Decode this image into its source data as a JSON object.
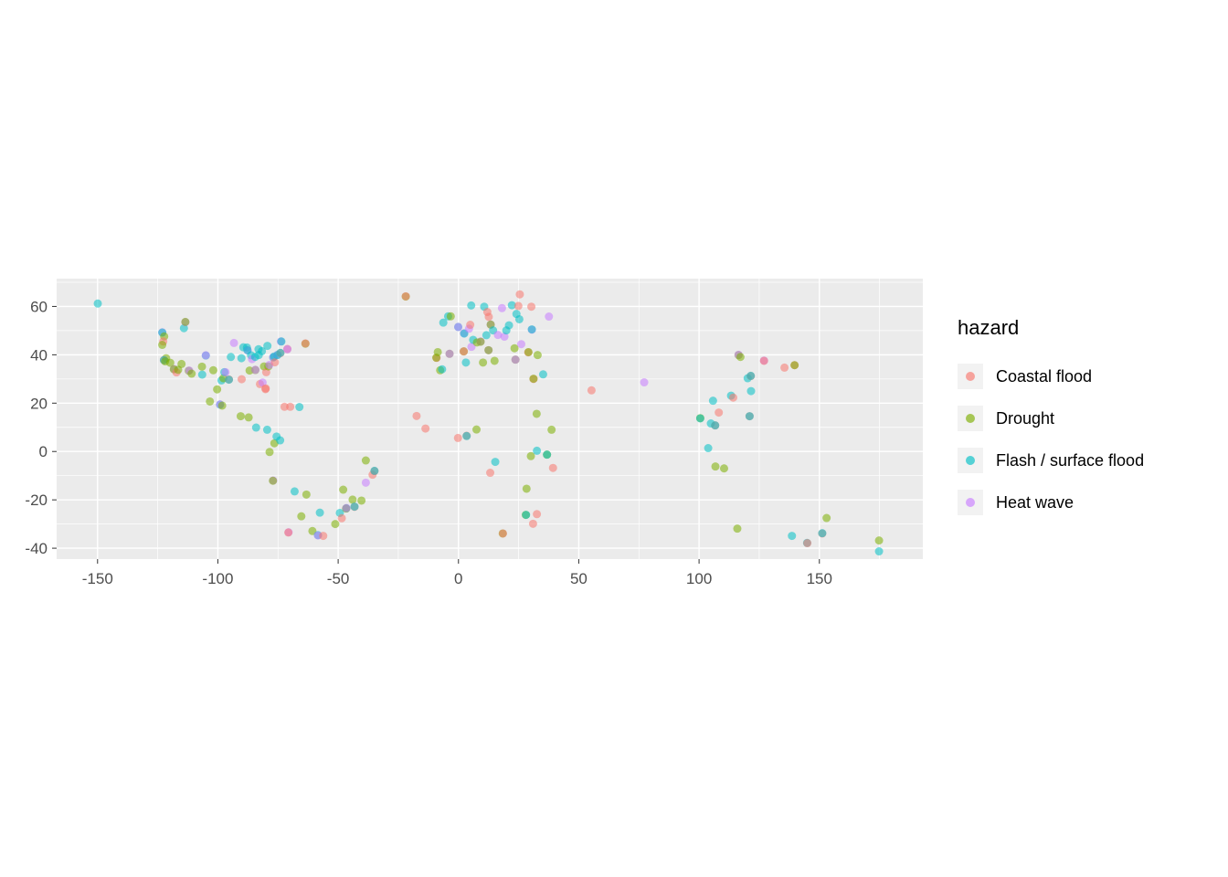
{
  "legend": {
    "title": "hazard"
  },
  "colors": {
    "panel_bg": "#EBEBEB",
    "grid": "#FFFFFF",
    "axis_text": "#4D4D4D",
    "tick_mark": "#333333",
    "legend_key_bg": "#F2F2F2"
  },
  "chart_data": {
    "type": "scatter",
    "title": "",
    "xlabel": "",
    "ylabel": "",
    "xlim": [
      -167,
      193
    ],
    "ylim": [
      -44.5,
      71.5
    ],
    "x_ticks": [
      -150,
      -100,
      -50,
      0,
      50,
      100,
      150
    ],
    "y_ticks": [
      -40,
      -20,
      0,
      20,
      40,
      60
    ],
    "grid": "major and minor white gridlines on gray panel",
    "legend_position": "right",
    "legend_title": "hazard",
    "point_alpha": 0.55,
    "point_radius": 4.5,
    "series": [
      {
        "code": "C",
        "name": "Coastal flood",
        "color": "#F8766D"
      },
      {
        "code": "D",
        "name": "Drought",
        "color": "#7CAE00"
      },
      {
        "code": "F",
        "name": "Flash / surface flood",
        "color": "#00BFC4"
      },
      {
        "code": "H",
        "name": "Heat wave",
        "color": "#C77CFF"
      }
    ],
    "points": [
      [
        -149.9,
        61.2,
        "F"
      ],
      [
        -123.1,
        49.3,
        "H"
      ],
      [
        -123.1,
        49.2,
        "F"
      ],
      [
        -122.3,
        47.6,
        "D"
      ],
      [
        -122.7,
        45.5,
        "C"
      ],
      [
        -123.1,
        44.1,
        "D"
      ],
      [
        -121.5,
        38.6,
        "D"
      ],
      [
        -122.4,
        37.8,
        "C"
      ],
      [
        -122.4,
        37.8,
        "F"
      ],
      [
        -121.9,
        37.3,
        "D"
      ],
      [
        -119.8,
        36.7,
        "D"
      ],
      [
        -118.2,
        34.1,
        "H"
      ],
      [
        -118.3,
        34.0,
        "D"
      ],
      [
        -117.2,
        32.7,
        "C"
      ],
      [
        -116.5,
        33.8,
        "D"
      ],
      [
        -115.1,
        36.2,
        "D"
      ],
      [
        -114.1,
        51.0,
        "F"
      ],
      [
        -113.5,
        53.5,
        "H"
      ],
      [
        -113.5,
        53.6,
        "D"
      ],
      [
        -112.1,
        33.4,
        "D"
      ],
      [
        -111.9,
        33.5,
        "H"
      ],
      [
        -110.9,
        32.2,
        "D"
      ],
      [
        -106.6,
        35.1,
        "D"
      ],
      [
        -106.5,
        31.8,
        "F"
      ],
      [
        -105.0,
        39.7,
        "F"
      ],
      [
        -105.0,
        39.8,
        "H"
      ],
      [
        -101.9,
        33.6,
        "D"
      ],
      [
        -98.5,
        29.4,
        "F"
      ],
      [
        -97.7,
        30.3,
        "D"
      ],
      [
        -97.3,
        32.8,
        "F"
      ],
      [
        -96.8,
        32.8,
        "H"
      ],
      [
        -95.4,
        29.8,
        "C"
      ],
      [
        -95.4,
        29.7,
        "F"
      ],
      [
        -94.6,
        39.1,
        "F"
      ],
      [
        -93.3,
        44.9,
        "H"
      ],
      [
        -90.2,
        38.6,
        "F"
      ],
      [
        -90.1,
        29.9,
        "C"
      ],
      [
        -89.4,
        43.1,
        "F"
      ],
      [
        -87.9,
        43.0,
        "F"
      ],
      [
        -87.6,
        41.8,
        "H"
      ],
      [
        -87.7,
        41.9,
        "F"
      ],
      [
        -86.8,
        33.5,
        "D"
      ],
      [
        -86.2,
        39.8,
        "F"
      ],
      [
        -85.8,
        38.2,
        "H"
      ],
      [
        -84.5,
        39.1,
        "F"
      ],
      [
        -84.4,
        33.7,
        "D"
      ],
      [
        -84.4,
        33.8,
        "H"
      ],
      [
        -83.0,
        39.9,
        "F"
      ],
      [
        -83.1,
        42.3,
        "F"
      ],
      [
        -82.5,
        27.9,
        "C"
      ],
      [
        -81.7,
        41.5,
        "F"
      ],
      [
        -81.4,
        28.5,
        "H"
      ],
      [
        -80.8,
        35.2,
        "D"
      ],
      [
        -80.2,
        25.8,
        "C"
      ],
      [
        -80.1,
        26.1,
        "C"
      ],
      [
        -79.9,
        32.8,
        "C"
      ],
      [
        -79.4,
        43.7,
        "F"
      ],
      [
        -79.0,
        35.2,
        "D"
      ],
      [
        -78.6,
        35.8,
        "H"
      ],
      [
        -77.0,
        38.9,
        "F"
      ],
      [
        -77.0,
        39.0,
        "H"
      ],
      [
        -76.6,
        39.3,
        "F"
      ],
      [
        -76.3,
        36.9,
        "C"
      ],
      [
        -75.2,
        40.0,
        "H"
      ],
      [
        -75.2,
        39.9,
        "F"
      ],
      [
        -74.0,
        40.7,
        "C"
      ],
      [
        -74.0,
        40.8,
        "F"
      ],
      [
        -73.8,
        45.5,
        "H"
      ],
      [
        -73.6,
        45.5,
        "F"
      ],
      [
        -71.1,
        42.4,
        "C"
      ],
      [
        -71.1,
        42.3,
        "H"
      ],
      [
        -63.6,
        44.6,
        "D"
      ],
      [
        -63.6,
        44.7,
        "C"
      ],
      [
        -103.3,
        20.7,
        "D"
      ],
      [
        -100.3,
        25.7,
        "D"
      ],
      [
        -99.1,
        19.4,
        "F"
      ],
      [
        -99.1,
        19.5,
        "H"
      ],
      [
        -98.2,
        19.0,
        "D"
      ],
      [
        -90.5,
        14.6,
        "D"
      ],
      [
        -87.2,
        14.1,
        "D"
      ],
      [
        -84.1,
        9.9,
        "F"
      ],
      [
        -79.5,
        9.0,
        "F"
      ],
      [
        -72.3,
        18.5,
        "C"
      ],
      [
        -69.9,
        18.5,
        "C"
      ],
      [
        -66.1,
        18.4,
        "F"
      ],
      [
        -76.5,
        3.4,
        "D"
      ],
      [
        -75.6,
        6.2,
        "F"
      ],
      [
        -74.1,
        4.6,
        "F"
      ],
      [
        -78.5,
        -0.2,
        "D"
      ],
      [
        -77.0,
        -12.0,
        "H"
      ],
      [
        -77.1,
        -12.1,
        "D"
      ],
      [
        -70.6,
        -33.4,
        "H"
      ],
      [
        -70.7,
        -33.5,
        "C"
      ],
      [
        -68.1,
        -16.5,
        "F"
      ],
      [
        -65.3,
        -26.8,
        "D"
      ],
      [
        -63.2,
        -17.8,
        "D"
      ],
      [
        -60.7,
        -32.9,
        "D"
      ],
      [
        -58.4,
        -34.6,
        "F"
      ],
      [
        -58.4,
        -34.7,
        "H"
      ],
      [
        -57.6,
        -25.3,
        "F"
      ],
      [
        -56.2,
        -34.9,
        "C"
      ],
      [
        -51.2,
        -30.0,
        "D"
      ],
      [
        -49.3,
        -25.4,
        "F"
      ],
      [
        -48.5,
        -27.6,
        "C"
      ],
      [
        -47.9,
        -15.8,
        "D"
      ],
      [
        -46.6,
        -23.5,
        "F"
      ],
      [
        -46.7,
        -23.6,
        "D"
      ],
      [
        -46.6,
        -23.4,
        "H"
      ],
      [
        -44.0,
        -19.9,
        "D"
      ],
      [
        -43.2,
        -22.9,
        "C"
      ],
      [
        -43.2,
        -22.8,
        "F"
      ],
      [
        -40.3,
        -20.3,
        "D"
      ],
      [
        -38.5,
        -12.9,
        "H"
      ],
      [
        -38.5,
        -3.7,
        "D"
      ],
      [
        -35.7,
        -9.6,
        "C"
      ],
      [
        -34.9,
        -8.1,
        "C"
      ],
      [
        -34.9,
        -8.0,
        "F"
      ],
      [
        -21.9,
        64.1,
        "D"
      ],
      [
        -21.9,
        64.2,
        "C"
      ],
      [
        -17.4,
        14.7,
        "C"
      ],
      [
        -13.7,
        9.5,
        "C"
      ],
      [
        -9.1,
        38.7,
        "C"
      ],
      [
        -9.2,
        38.8,
        "D"
      ],
      [
        -8.6,
        41.1,
        "D"
      ],
      [
        -6.3,
        53.3,
        "F"
      ],
      [
        -4.3,
        55.9,
        "F"
      ],
      [
        -3.7,
        40.4,
        "D"
      ],
      [
        -3.7,
        40.4,
        "H"
      ],
      [
        -3.2,
        55.9,
        "D"
      ],
      [
        -0.1,
        51.5,
        "F"
      ],
      [
        -0.1,
        51.5,
        "H"
      ],
      [
        2.2,
        41.4,
        "D"
      ],
      [
        2.2,
        41.4,
        "C"
      ],
      [
        2.3,
        48.9,
        "H"
      ],
      [
        2.4,
        48.8,
        "F"
      ],
      [
        4.4,
        50.8,
        "H"
      ],
      [
        4.9,
        52.4,
        "C"
      ],
      [
        5.3,
        60.4,
        "F"
      ],
      [
        5.4,
        43.3,
        "H"
      ],
      [
        6.1,
        46.2,
        "F"
      ],
      [
        7.7,
        45.1,
        "D"
      ],
      [
        9.2,
        45.5,
        "H"
      ],
      [
        9.2,
        45.4,
        "D"
      ],
      [
        10.7,
        59.9,
        "F"
      ],
      [
        11.6,
        48.1,
        "F"
      ],
      [
        12.0,
        57.7,
        "C"
      ],
      [
        12.5,
        41.9,
        "H"
      ],
      [
        12.5,
        41.9,
        "D"
      ],
      [
        12.6,
        55.7,
        "C"
      ],
      [
        13.4,
        52.5,
        "H"
      ],
      [
        13.4,
        52.5,
        "D"
      ],
      [
        14.4,
        50.1,
        "F"
      ],
      [
        15.0,
        37.5,
        "D"
      ],
      [
        16.4,
        48.2,
        "H"
      ],
      [
        18.1,
        59.3,
        "H"
      ],
      [
        19.1,
        47.5,
        "H"
      ],
      [
        19.9,
        50.1,
        "F"
      ],
      [
        21.0,
        52.2,
        "F"
      ],
      [
        22.2,
        60.5,
        "F"
      ],
      [
        23.3,
        42.7,
        "D"
      ],
      [
        23.7,
        38.0,
        "D"
      ],
      [
        23.7,
        38.0,
        "H"
      ],
      [
        24.9,
        60.2,
        "C"
      ],
      [
        25.5,
        65.0,
        "C"
      ],
      [
        26.1,
        44.4,
        "H"
      ],
      [
        29.0,
        41.0,
        "C"
      ],
      [
        29.1,
        41.1,
        "D"
      ],
      [
        30.3,
        59.9,
        "C"
      ],
      [
        30.5,
        50.4,
        "H"
      ],
      [
        30.5,
        50.5,
        "F"
      ],
      [
        37.6,
        55.8,
        "H"
      ],
      [
        24.1,
        56.9,
        "F"
      ],
      [
        25.3,
        54.7,
        "F"
      ],
      [
        -7.6,
        33.6,
        "D"
      ],
      [
        -6.8,
        34.0,
        "F"
      ],
      [
        3.1,
        36.8,
        "F"
      ],
      [
        10.2,
        36.8,
        "D"
      ],
      [
        -0.2,
        5.6,
        "C"
      ],
      [
        3.4,
        6.5,
        "C"
      ],
      [
        3.4,
        6.4,
        "F"
      ],
      [
        7.5,
        9.1,
        "D"
      ],
      [
        15.3,
        -4.3,
        "F"
      ],
      [
        13.2,
        -8.8,
        "C"
      ],
      [
        18.4,
        -33.9,
        "D"
      ],
      [
        18.5,
        -33.9,
        "C"
      ],
      [
        28.0,
        -26.2,
        "D"
      ],
      [
        28.1,
        -26.2,
        "F"
      ],
      [
        28.3,
        -15.4,
        "D"
      ],
      [
        31.0,
        -29.9,
        "C"
      ],
      [
        32.6,
        -25.9,
        "C"
      ],
      [
        36.8,
        -1.3,
        "D"
      ],
      [
        36.8,
        -1.3,
        "F"
      ],
      [
        38.7,
        9.0,
        "D"
      ],
      [
        39.3,
        -6.8,
        "C"
      ],
      [
        30.1,
        -1.9,
        "D"
      ],
      [
        32.6,
        0.3,
        "F"
      ],
      [
        32.5,
        15.6,
        "D"
      ],
      [
        31.2,
        30.0,
        "C"
      ],
      [
        31.2,
        30.1,
        "D"
      ],
      [
        35.2,
        31.9,
        "F"
      ],
      [
        32.9,
        39.9,
        "D"
      ],
      [
        55.3,
        25.3,
        "C"
      ],
      [
        77.2,
        28.6,
        "H"
      ],
      [
        100.5,
        13.8,
        "D"
      ],
      [
        100.5,
        13.7,
        "F"
      ],
      [
        104.9,
        11.6,
        "F"
      ],
      [
        105.8,
        21.0,
        "F"
      ],
      [
        106.7,
        10.8,
        "C"
      ],
      [
        106.7,
        10.8,
        "F"
      ],
      [
        108.2,
        16.1,
        "C"
      ],
      [
        113.3,
        23.1,
        "F"
      ],
      [
        114.2,
        22.3,
        "C"
      ],
      [
        116.4,
        39.9,
        "D"
      ],
      [
        116.4,
        40.0,
        "H"
      ],
      [
        117.2,
        39.1,
        "D"
      ],
      [
        120.2,
        30.3,
        "F"
      ],
      [
        121.5,
        31.2,
        "C"
      ],
      [
        121.5,
        31.3,
        "F"
      ],
      [
        121.0,
        14.6,
        "C"
      ],
      [
        121.0,
        14.6,
        "F"
      ],
      [
        121.6,
        25.0,
        "F"
      ],
      [
        127.0,
        37.6,
        "H"
      ],
      [
        127.0,
        37.5,
        "C"
      ],
      [
        135.5,
        34.7,
        "C"
      ],
      [
        139.7,
        35.7,
        "C"
      ],
      [
        139.7,
        35.7,
        "D"
      ],
      [
        103.8,
        1.4,
        "F"
      ],
      [
        106.8,
        -6.2,
        "D"
      ],
      [
        110.4,
        -7.0,
        "D"
      ],
      [
        115.9,
        -31.9,
        "D"
      ],
      [
        138.6,
        -34.9,
        "F"
      ],
      [
        144.9,
        -37.8,
        "F"
      ],
      [
        145.0,
        -37.9,
        "C"
      ],
      [
        151.2,
        -33.9,
        "C"
      ],
      [
        151.2,
        -33.8,
        "F"
      ],
      [
        153.0,
        -27.5,
        "D"
      ],
      [
        174.8,
        -36.8,
        "D"
      ],
      [
        174.8,
        -41.3,
        "F"
      ]
    ]
  }
}
